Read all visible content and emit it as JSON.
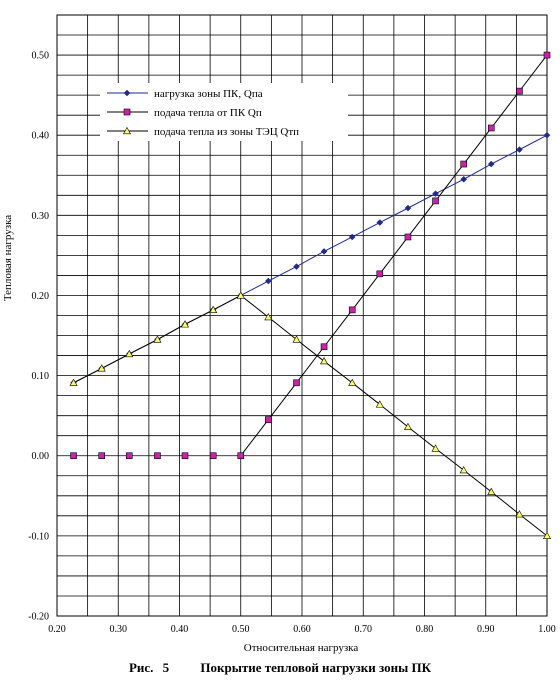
{
  "chart_data": {
    "type": "line",
    "x": [
      0.227,
      0.273,
      0.318,
      0.364,
      0.409,
      0.455,
      0.5,
      0.545,
      0.591,
      0.636,
      0.682,
      0.727,
      0.773,
      0.818,
      0.864,
      0.909,
      0.955,
      1.0
    ],
    "series": [
      {
        "name": "нагрузка зоны ПК, Qпа",
        "marker": "diamond",
        "color": "#1f2a8a",
        "values": [
          0.091,
          0.109,
          0.127,
          0.145,
          0.164,
          0.182,
          0.2,
          0.218,
          0.236,
          0.255,
          0.273,
          0.291,
          0.309,
          0.327,
          0.345,
          0.364,
          0.382,
          0.4
        ]
      },
      {
        "name": "подача тепла от ПК Qп",
        "marker": "square",
        "color": "#cc22aa",
        "values": [
          0,
          0,
          0,
          0,
          0,
          0,
          0,
          0.045,
          0.091,
          0.136,
          0.182,
          0.227,
          0.273,
          0.318,
          0.364,
          0.409,
          0.455,
          0.5
        ]
      },
      {
        "name": "подача тепла из зоны ТЭЦ Qтп",
        "marker": "triangle",
        "color": "#ffff66",
        "x": [
          0.227,
          0.273,
          0.318,
          0.364,
          0.409,
          0.455,
          0.5,
          0.545,
          0.591,
          0.636,
          0.682,
          0.727,
          0.773,
          0.818,
          0.864,
          0.909,
          0.955,
          1.0
        ],
        "values": [
          0.091,
          0.109,
          0.127,
          0.145,
          0.164,
          0.182,
          0.2,
          0.173,
          0.145,
          0.118,
          0.091,
          0.064,
          0.036,
          0.009,
          -0.018,
          -0.045,
          -0.073,
          -0.1
        ]
      }
    ],
    "xlabel": "Относительная нагрузка",
    "ylabel": "Тепловая нагрузка",
    "xlim": [
      0.2,
      1.0
    ],
    "ylim": [
      -0.2,
      0.55
    ],
    "xticks": [
      "0.20",
      "0.30",
      "0.40",
      "0.50",
      "0.60",
      "0.70",
      "0.80",
      "0.90",
      "1.00"
    ],
    "yticks": [
      "-0.20",
      "-0.10",
      "0.00",
      "0.10",
      "0.20",
      "0.30",
      "0.40",
      "0.50"
    ],
    "grid": true,
    "legend_position": "top-left"
  },
  "caption": {
    "figure_label": "Рис.",
    "figure_number": "5",
    "text": "Покрытие тепловой нагрузки зоны ПК"
  }
}
